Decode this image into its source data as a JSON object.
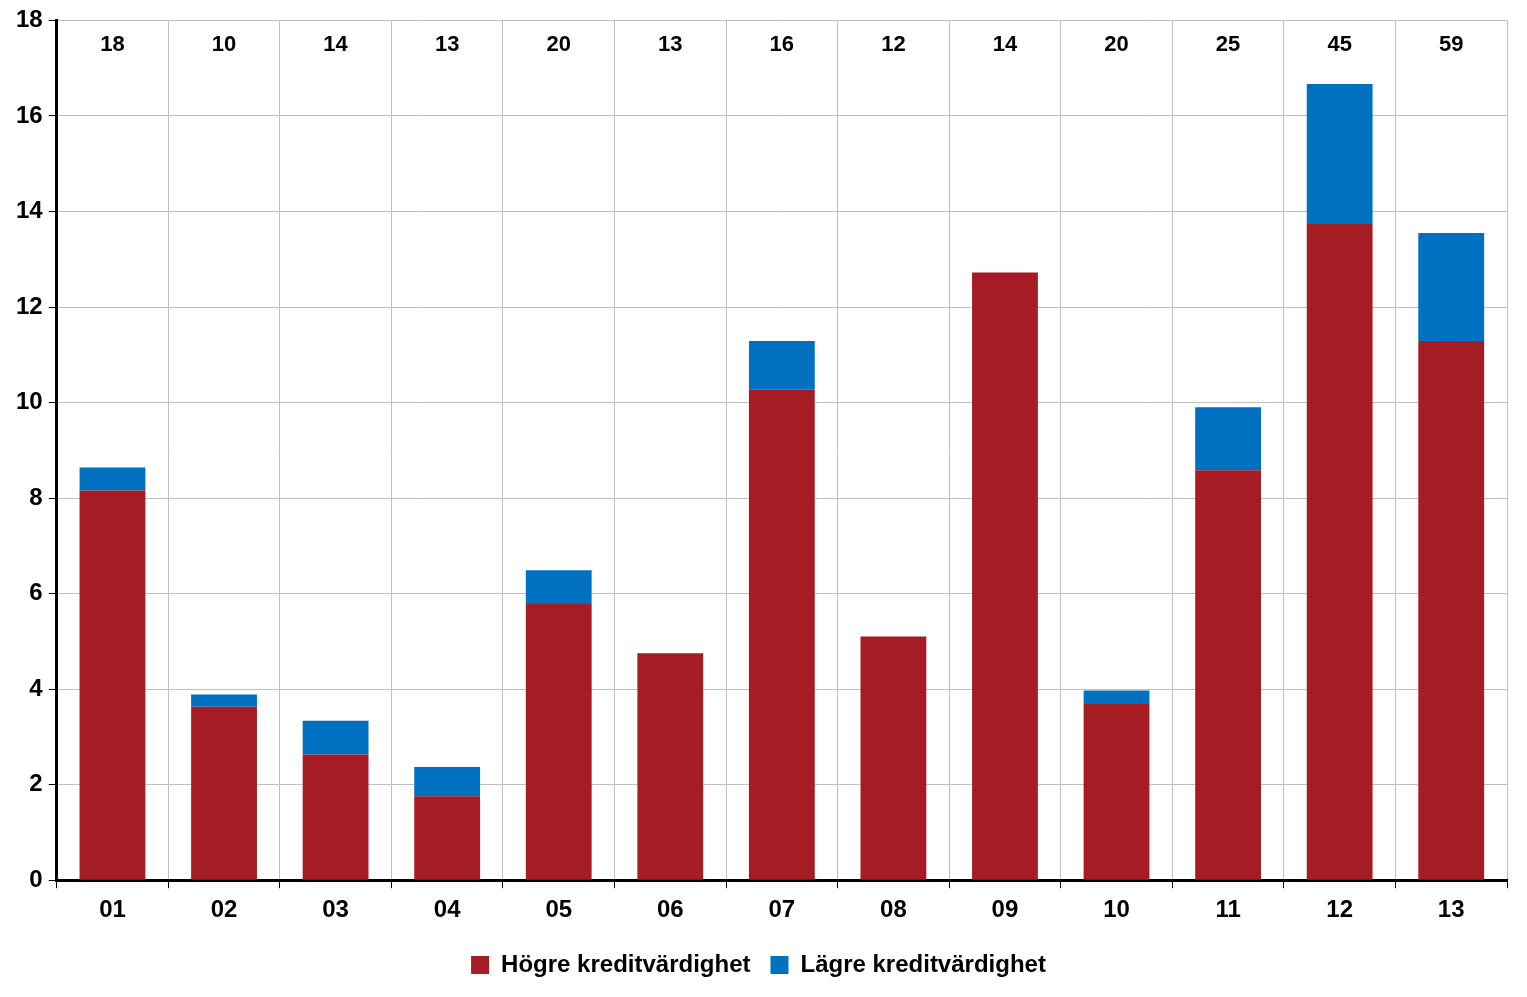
{
  "chart_data": {
    "type": "bar",
    "categories": [
      "01",
      "02",
      "03",
      "04",
      "05",
      "06",
      "07",
      "08",
      "09",
      "10",
      "11",
      "12",
      "13"
    ],
    "series": [
      {
        "name": "Högre kreditvärdighet",
        "color": "#a51c24",
        "values": [
          8.16,
          3.63,
          2.63,
          1.76,
          5.78,
          4.75,
          10.27,
          5.1,
          12.72,
          3.69,
          8.58,
          13.74,
          11.29
        ]
      },
      {
        "name": "Lägre kreditvärdighet",
        "color": "#0070c0",
        "values": [
          0.48,
          0.26,
          0.71,
          0.61,
          0.71,
          0,
          1.02,
          0,
          0,
          0.28,
          1.32,
          2.93,
          2.26
        ]
      }
    ],
    "counts": [
      18,
      10,
      14,
      13,
      20,
      13,
      16,
      12,
      14,
      20,
      25,
      45,
      59
    ],
    "ylim": [
      0,
      18
    ],
    "yticks": [
      0,
      2,
      4,
      6,
      8,
      10,
      12,
      14,
      16,
      18
    ],
    "stacked": true,
    "grid": true,
    "legend": "bottom"
  }
}
